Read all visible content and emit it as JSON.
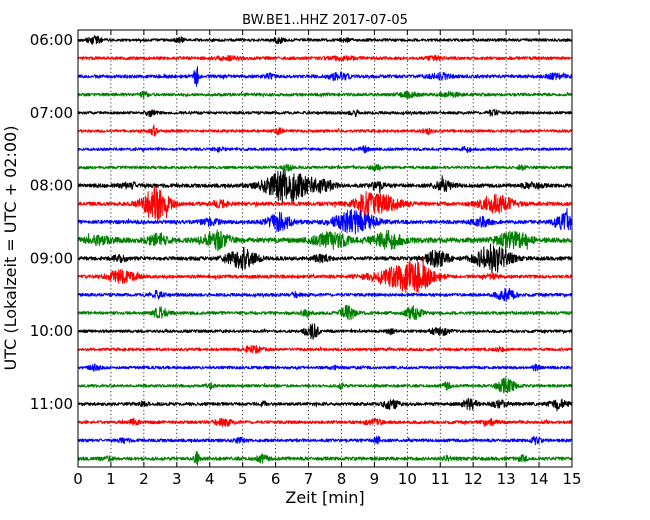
{
  "chart_data": {
    "type": "line",
    "title": "BW.BE1..HHZ 2017-07-05",
    "xlabel": "Zeit  [min]",
    "ylabel": "UTC (Lokalzeit = UTC + 02:00)",
    "xlim": [
      0,
      15
    ],
    "x_ticks": [
      "0",
      "1",
      "2",
      "3",
      "4",
      "5",
      "6",
      "7",
      "8",
      "9",
      "10",
      "11",
      "12",
      "13",
      "14",
      "15"
    ],
    "y_ticks": [
      "06:00",
      "07:00",
      "08:00",
      "09:00",
      "10:00",
      "11:00"
    ],
    "grid": "vertical dotted",
    "colors": [
      "#000000",
      "#ff0000",
      "#0000ff",
      "#008000"
    ],
    "traces": [
      {
        "start": "06:00",
        "color": "#000000",
        "noise": 0.45,
        "events": [
          [
            0.5,
            0.15,
            1.0
          ],
          [
            6.1,
            0.1,
            0.9
          ],
          [
            3.1,
            0.1,
            0.6
          ],
          [
            8.1,
            0.1,
            0.5
          ]
        ]
      },
      {
        "start": "06:15",
        "color": "#ff0000",
        "noise": 0.5,
        "events": [
          [
            10.8,
            0.12,
            0.9
          ],
          [
            8.0,
            0.3,
            0.5
          ],
          [
            4.5,
            0.3,
            0.4
          ]
        ]
      },
      {
        "start": "06:30",
        "color": "#0000ff",
        "noise": 0.55,
        "events": [
          [
            3.6,
            0.06,
            3.4
          ],
          [
            7.9,
            0.2,
            1.0
          ],
          [
            11.0,
            0.2,
            0.8
          ],
          [
            14.5,
            0.2,
            0.7
          ],
          [
            5.8,
            0.1,
            0.7
          ]
        ]
      },
      {
        "start": "06:45",
        "color": "#008000",
        "noise": 0.5,
        "events": [
          [
            2.0,
            0.08,
            0.9
          ],
          [
            10.0,
            0.2,
            0.7
          ],
          [
            11.3,
            0.2,
            0.6
          ]
        ]
      },
      {
        "start": "07:00",
        "color": "#000000",
        "noise": 0.45,
        "events": [
          [
            2.2,
            0.1,
            0.9
          ],
          [
            8.4,
            0.1,
            0.8
          ],
          [
            12.6,
            0.12,
            0.8
          ]
        ]
      },
      {
        "start": "07:15",
        "color": "#ff0000",
        "noise": 0.45,
        "events": [
          [
            2.3,
            0.06,
            1.5
          ],
          [
            6.1,
            0.08,
            0.9
          ],
          [
            10.6,
            0.1,
            0.8
          ]
        ]
      },
      {
        "start": "07:30",
        "color": "#0000ff",
        "noise": 0.45,
        "events": [
          [
            8.7,
            0.1,
            0.8
          ],
          [
            11.8,
            0.1,
            0.7
          ],
          [
            4.3,
            0.1,
            0.6
          ]
        ]
      },
      {
        "start": "07:45",
        "color": "#008000",
        "noise": 0.45,
        "events": [
          [
            6.4,
            0.1,
            0.9
          ],
          [
            9.0,
            0.1,
            0.8
          ],
          [
            13.5,
            0.1,
            0.6
          ]
        ]
      },
      {
        "start": "08:00",
        "color": "#000000",
        "noise": 0.6,
        "events": [
          [
            6.35,
            0.45,
            5.2
          ],
          [
            7.4,
            0.25,
            1.8
          ],
          [
            11.1,
            0.2,
            1.5
          ],
          [
            9.1,
            0.15,
            1.2
          ],
          [
            1.6,
            0.2,
            0.8
          ],
          [
            13.8,
            0.2,
            0.8
          ]
        ]
      },
      {
        "start": "08:15",
        "color": "#ff0000",
        "noise": 0.6,
        "events": [
          [
            2.35,
            0.28,
            5.0
          ],
          [
            9.1,
            0.45,
            2.8
          ],
          [
            12.7,
            0.35,
            2.7
          ],
          [
            8.7,
            0.15,
            1.6
          ],
          [
            4.3,
            0.2,
            0.9
          ]
        ]
      },
      {
        "start": "08:30",
        "color": "#0000ff",
        "noise": 0.6,
        "events": [
          [
            8.4,
            0.42,
            3.6
          ],
          [
            6.1,
            0.25,
            2.6
          ],
          [
            14.8,
            0.2,
            2.6
          ],
          [
            12.3,
            0.2,
            1.3
          ],
          [
            4.0,
            0.2,
            0.9
          ]
        ]
      },
      {
        "start": "08:45",
        "color": "#008000",
        "noise": 0.8,
        "events": [
          [
            4.2,
            0.25,
            2.8
          ],
          [
            7.7,
            0.35,
            2.3
          ],
          [
            9.4,
            0.3,
            2.5
          ],
          [
            13.2,
            0.35,
            2.2
          ],
          [
            2.4,
            0.2,
            1.6
          ],
          [
            0.6,
            0.3,
            1.0
          ]
        ]
      },
      {
        "start": "09:00",
        "color": "#000000",
        "noise": 0.6,
        "events": [
          [
            4.95,
            0.3,
            3.4
          ],
          [
            12.6,
            0.35,
            4.3
          ],
          [
            10.9,
            0.25,
            2.4
          ],
          [
            1.3,
            0.2,
            0.8
          ],
          [
            7.4,
            0.2,
            0.9
          ]
        ]
      },
      {
        "start": "09:15",
        "color": "#ff0000",
        "noise": 0.55,
        "events": [
          [
            9.7,
            0.55,
            3.0
          ],
          [
            10.3,
            0.35,
            3.2
          ],
          [
            1.3,
            0.3,
            1.8
          ],
          [
            12.6,
            0.1,
            0.8
          ]
        ]
      },
      {
        "start": "09:30",
        "color": "#0000ff",
        "noise": 0.5,
        "events": [
          [
            13.0,
            0.2,
            1.8
          ],
          [
            2.4,
            0.15,
            1.0
          ],
          [
            6.6,
            0.1,
            0.7
          ]
        ]
      },
      {
        "start": "09:45",
        "color": "#008000",
        "noise": 0.5,
        "events": [
          [
            10.2,
            0.15,
            2.3
          ],
          [
            8.2,
            0.15,
            2.2
          ],
          [
            2.5,
            0.15,
            1.6
          ],
          [
            6.9,
            0.1,
            1.0
          ]
        ]
      },
      {
        "start": "10:00",
        "color": "#000000",
        "noise": 0.45,
        "events": [
          [
            7.15,
            0.1,
            2.7
          ],
          [
            11.0,
            0.2,
            1.2
          ],
          [
            6.9,
            0.08,
            0.8
          ],
          [
            9.5,
            0.1,
            0.8
          ]
        ]
      },
      {
        "start": "10:15",
        "color": "#ff0000",
        "noise": 0.45,
        "events": [
          [
            5.3,
            0.2,
            1.0
          ],
          [
            12.8,
            0.1,
            0.6
          ]
        ]
      },
      {
        "start": "10:30",
        "color": "#0000ff",
        "noise": 0.45,
        "events": [
          [
            0.5,
            0.12,
            0.8
          ],
          [
            13.9,
            0.1,
            0.7
          ],
          [
            7.8,
            0.1,
            0.5
          ]
        ]
      },
      {
        "start": "10:45",
        "color": "#008000",
        "noise": 0.45,
        "events": [
          [
            13.0,
            0.2,
            2.3
          ],
          [
            11.2,
            0.08,
            1.1
          ],
          [
            4.0,
            0.08,
            0.9
          ],
          [
            8.0,
            0.08,
            0.8
          ]
        ]
      },
      {
        "start": "11:00",
        "color": "#000000",
        "noise": 0.5,
        "events": [
          [
            9.5,
            0.15,
            1.6
          ],
          [
            11.9,
            0.15,
            1.6
          ],
          [
            14.6,
            0.2,
            1.3
          ],
          [
            2.0,
            0.08,
            0.8
          ],
          [
            12.8,
            0.2,
            0.9
          ],
          [
            5.6,
            0.1,
            0.6
          ]
        ]
      },
      {
        "start": "11:15",
        "color": "#ff0000",
        "noise": 0.5,
        "events": [
          [
            4.4,
            0.2,
            1.0
          ],
          [
            9.0,
            0.2,
            0.8
          ],
          [
            1.7,
            0.1,
            0.9
          ],
          [
            12.5,
            0.15,
            0.8
          ]
        ]
      },
      {
        "start": "11:30",
        "color": "#0000ff",
        "noise": 0.5,
        "events": [
          [
            9.1,
            0.08,
            1.0
          ],
          [
            13.9,
            0.1,
            1.0
          ],
          [
            4.9,
            0.1,
            0.7
          ],
          [
            1.4,
            0.1,
            0.6
          ]
        ]
      },
      {
        "start": "11:45",
        "color": "#008000",
        "noise": 0.55,
        "events": [
          [
            3.6,
            0.05,
            1.9
          ],
          [
            5.6,
            0.12,
            1.0
          ],
          [
            13.5,
            0.1,
            0.8
          ],
          [
            0.9,
            0.1,
            0.6
          ],
          [
            11.2,
            0.1,
            0.6
          ]
        ]
      }
    ]
  }
}
